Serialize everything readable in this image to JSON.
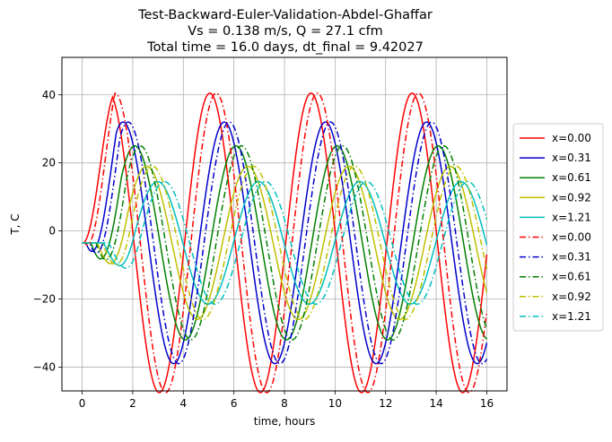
{
  "chart_data": {
    "type": "line",
    "title_lines": [
      "Test-Backward-Euler-Validation-Abdel-Ghaffar",
      "Vs = 0.138 m/s, Q = 27.1 cfm",
      "Total time = 16.0 days, dt_final = 9.42027"
    ],
    "xlabel": "time, hours",
    "ylabel": "T, C",
    "xlim": [
      -0.8,
      16.8
    ],
    "ylim": [
      -47,
      51
    ],
    "x_ticks": [
      0,
      2,
      4,
      6,
      8,
      10,
      12,
      14,
      16
    ],
    "y_ticks": [
      -40,
      -20,
      0,
      20,
      40
    ],
    "grid": true,
    "legend_position": "outside-right",
    "period_hours": 4.0,
    "baseline": -3.5,
    "series": [
      {
        "name": "x=0.00",
        "color": "#ff0000",
        "style": "solid",
        "amplitude": 44.0,
        "peak_t": 1.05,
        "onset": 0.0
      },
      {
        "name": "x=0.31",
        "color": "#0000cc",
        "style": "solid",
        "amplitude": 35.5,
        "peak_t": 1.62,
        "onset": 0.15
      },
      {
        "name": "x=0.61",
        "color": "#008000",
        "style": "solid",
        "amplitude": 28.5,
        "peak_t": 2.08,
        "onset": 0.35
      },
      {
        "name": "x=0.92",
        "color": "#bfbf00",
        "style": "solid",
        "amplitude": 22.5,
        "peak_t": 2.55,
        "onset": 0.6
      },
      {
        "name": "x=1.21",
        "color": "#00bfbf",
        "style": "solid",
        "amplitude": 18.0,
        "peak_t": 2.98,
        "onset": 0.85
      },
      {
        "name": "x=0.00",
        "color": "#ff0000",
        "style": "dashdot",
        "amplitude": 44.0,
        "peak_t": 1.3,
        "onset": 0.1
      },
      {
        "name": "x=0.31",
        "color": "#0000cc",
        "style": "dashdot",
        "amplitude": 35.5,
        "peak_t": 1.82,
        "onset": 0.3
      },
      {
        "name": "x=0.61",
        "color": "#008000",
        "style": "dashdot",
        "amplitude": 28.5,
        "peak_t": 2.3,
        "onset": 0.55
      },
      {
        "name": "x=0.92",
        "color": "#bfbf00",
        "style": "dashdot",
        "amplitude": 22.5,
        "peak_t": 2.78,
        "onset": 0.8
      },
      {
        "name": "x=1.21",
        "color": "#00bfbf",
        "style": "dashdot",
        "amplitude": 18.0,
        "peak_t": 3.25,
        "onset": 1.05
      }
    ]
  }
}
